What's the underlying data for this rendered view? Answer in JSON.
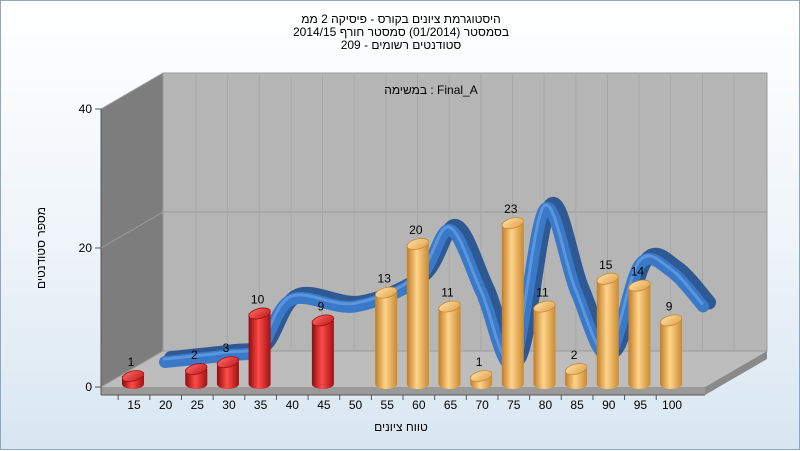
{
  "chart_data": {
    "type": "bar",
    "title_lines": [
      "היסטוגרמת ציונים בקורס - פיסיקה 2 ממ",
      "בסמסטר (01/2014) סמסטר חורף 2014/15",
      "סטודנטים רשומים - 209"
    ],
    "annotation": "במשימה : Final_A",
    "xlabel": "טווח ציונים",
    "ylabel": "מספר סטודנטים",
    "ylim": [
      0,
      40
    ],
    "y_ticks": [
      "0",
      "20",
      "40"
    ],
    "x_ticks": [
      "15",
      "20",
      "25",
      "30",
      "35",
      "40",
      "45",
      "50",
      "55",
      "60",
      "65",
      "70",
      "75",
      "80",
      "85",
      "90",
      "95",
      "100"
    ],
    "categories": [
      "15",
      "25",
      "30",
      "35",
      "45",
      "55",
      "60",
      "65",
      "70",
      "75",
      "80",
      "85",
      "90",
      "95",
      "100"
    ],
    "values": [
      1,
      2,
      3,
      10,
      9,
      13,
      20,
      11,
      1,
      23,
      11,
      2,
      15,
      14,
      9
    ],
    "bar_colors": [
      "red",
      "red",
      "red",
      "red",
      "red",
      "orange",
      "orange",
      "orange",
      "orange",
      "orange",
      "orange",
      "orange",
      "orange",
      "orange",
      "orange"
    ],
    "colors": {
      "red": "#d42020",
      "orange": "#e8a545",
      "curve": "#3a78c8",
      "curve_dark": "#6f6f6f",
      "back_wall": "#b5b5b5",
      "left_wall": "#7a7a7a",
      "floor": "#b7b7b7"
    },
    "grid": true
  }
}
